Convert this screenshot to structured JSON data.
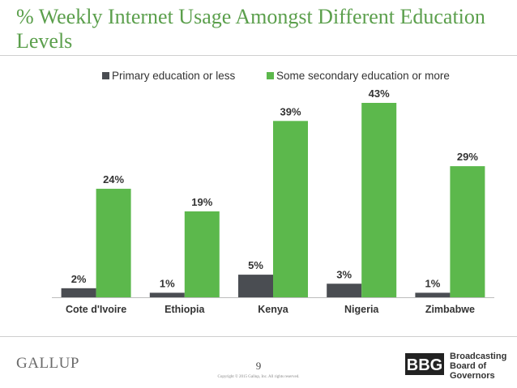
{
  "title": "% Weekly Internet Usage Amongst Different Education Levels",
  "footer": {
    "brand": "GALLUP",
    "page_number": "9",
    "copyright": "Copyright © 2015 Gallup, Inc. All rights reserved.",
    "org_mark": "BBG",
    "org_name_lines": [
      "Broadcasting",
      "Board of",
      "Governors"
    ]
  },
  "colors": {
    "title": "#5b9f4c",
    "series_primary": "#4a4d52",
    "series_secondary": "#5cb84c"
  },
  "chart_data": {
    "type": "bar",
    "title": "",
    "xlabel": "",
    "ylabel": "",
    "categories": [
      "Cote d'Ivoire",
      "Ethiopia",
      "Kenya",
      "Nigeria",
      "Zimbabwe"
    ],
    "series": [
      {
        "name": "Primary education or less",
        "values": [
          2,
          1,
          5,
          3,
          1
        ],
        "labels": [
          "2%",
          "1%",
          "5%",
          "3%",
          "1%"
        ]
      },
      {
        "name": "Some secondary education or more",
        "values": [
          24,
          19,
          39,
          43,
          29
        ],
        "labels": [
          "24%",
          "19%",
          "39%",
          "43%",
          "29%"
        ]
      }
    ],
    "ylim": [
      0,
      43
    ],
    "grid": false,
    "legend_position": "top"
  }
}
